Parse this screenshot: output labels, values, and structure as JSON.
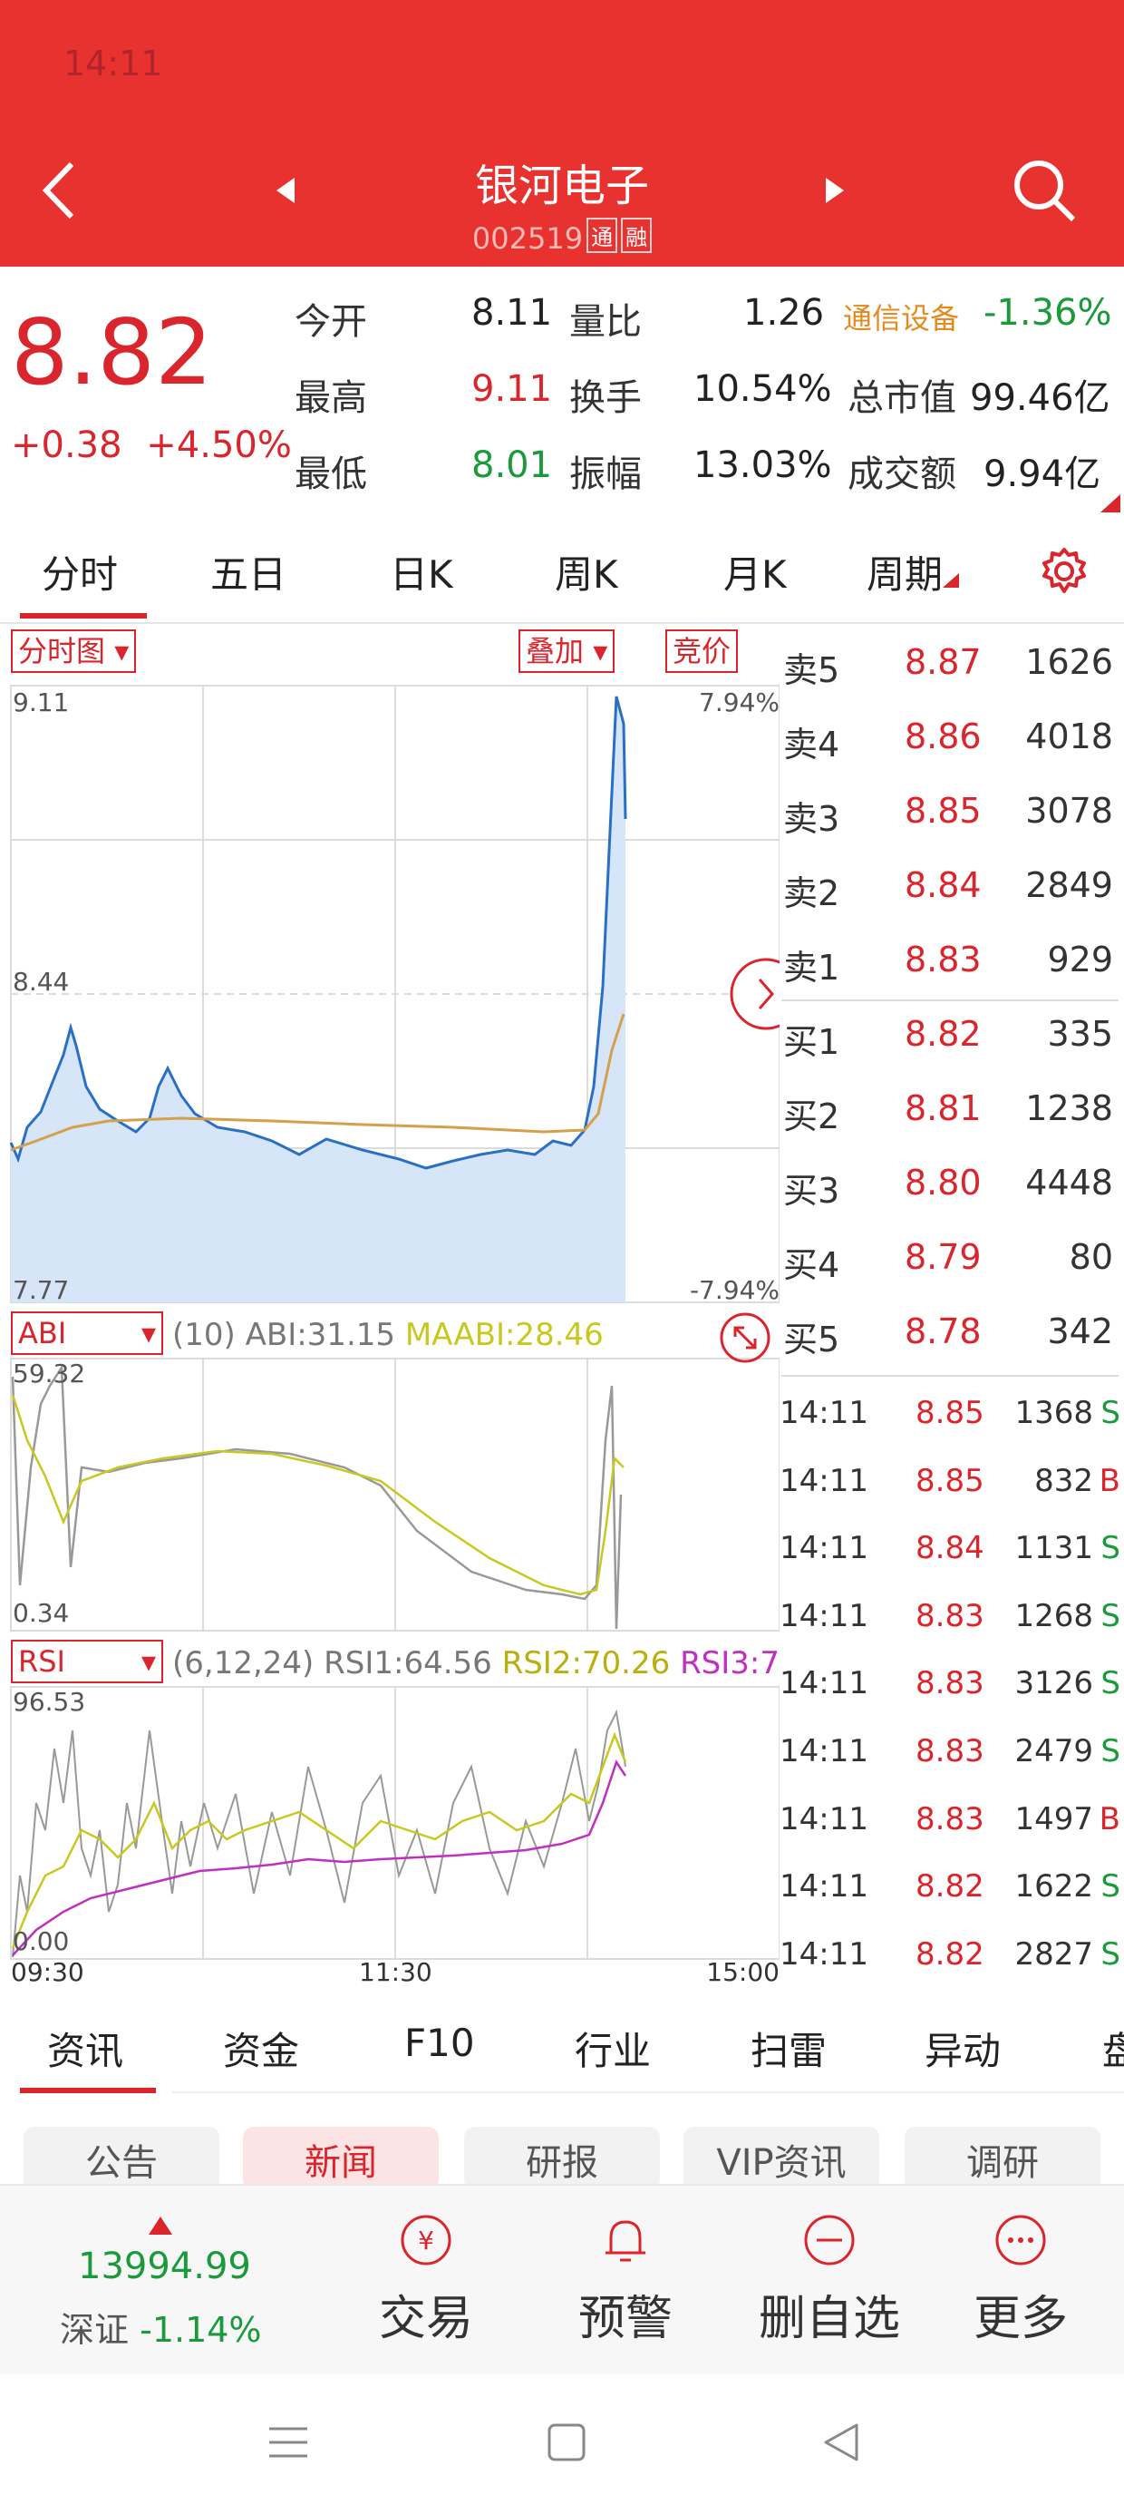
{
  "status_time": "14:11",
  "header": {
    "stock_name": "银河电子",
    "stock_code": "002519",
    "badge_tong": "通",
    "badge_rong": "融"
  },
  "quote": {
    "price": "8.82",
    "change": "+0.38",
    "change_pct": "+4.50%",
    "open_label": "今开",
    "open": "8.11",
    "high_label": "最高",
    "high": "9.11",
    "low_label": "最低",
    "low": "8.01",
    "vol_ratio_label": "量比",
    "vol_ratio": "1.26",
    "turnover_label": "换手",
    "turnover": "10.54%",
    "amplitude_label": "振幅",
    "amplitude": "13.03%",
    "sector": "通信设备",
    "sector_pct": "-1.36%",
    "mktcap_label": "总市值",
    "mktcap": "99.46亿",
    "amount_label": "成交额",
    "amount": "9.94亿"
  },
  "tabs": [
    "分时",
    "五日",
    "日K",
    "周K",
    "月K",
    "周期"
  ],
  "chart": {
    "mode_select": "分时图",
    "overlay_select": "叠加",
    "auction_button": "竞价",
    "price_max": "9.11",
    "price_mid": "8.44",
    "price_min": "7.77",
    "pct_max": "7.94%",
    "pct_min": "-7.94%",
    "abi_select": "ABI",
    "abi_params": "(10)",
    "abi_value": "ABI:31.15",
    "maabi_value": "MAABI:28.46",
    "abi_max": "59.32",
    "abi_min": "0.34",
    "rsi_select": "RSI",
    "rsi_params": "(6,12,24)",
    "rsi1": "RSI1:64.56",
    "rsi2": "RSI2:70.26",
    "rsi3": "RSI3:7",
    "rsi_max": "96.53",
    "rsi_min": "0.00",
    "time_start": "09:30",
    "time_mid": "11:30",
    "time_end": "15:00",
    "colors": {
      "price_line": "#2a6fc6",
      "avg_line": "#d4a14a",
      "fill": "#d6e6f8",
      "abi": "#c8c820",
      "rsi3": "#c030c0"
    }
  },
  "order_book": [
    {
      "label": "卖5",
      "price": "8.87",
      "vol": "1626"
    },
    {
      "label": "卖4",
      "price": "8.86",
      "vol": "4018"
    },
    {
      "label": "卖3",
      "price": "8.85",
      "vol": "3078"
    },
    {
      "label": "卖2",
      "price": "8.84",
      "vol": "2849"
    },
    {
      "label": "卖1",
      "price": "8.83",
      "vol": "929"
    },
    {
      "label": "买1",
      "price": "8.82",
      "vol": "335"
    },
    {
      "label": "买2",
      "price": "8.81",
      "vol": "1238"
    },
    {
      "label": "买3",
      "price": "8.80",
      "vol": "4448"
    },
    {
      "label": "买4",
      "price": "8.79",
      "vol": "80"
    },
    {
      "label": "买5",
      "price": "8.78",
      "vol": "342"
    }
  ],
  "trades": [
    {
      "time": "14:11",
      "price": "8.85",
      "vol": "1368",
      "side": "S"
    },
    {
      "time": "14:11",
      "price": "8.85",
      "vol": "832",
      "side": "B"
    },
    {
      "time": "14:11",
      "price": "8.84",
      "vol": "1131",
      "side": "S"
    },
    {
      "time": "14:11",
      "price": "8.83",
      "vol": "1268",
      "side": "S"
    },
    {
      "time": "14:11",
      "price": "8.83",
      "vol": "3126",
      "side": "S"
    },
    {
      "time": "14:11",
      "price": "8.83",
      "vol": "2479",
      "side": "S"
    },
    {
      "time": "14:11",
      "price": "8.83",
      "vol": "1497",
      "side": "B"
    },
    {
      "time": "14:11",
      "price": "8.82",
      "vol": "1622",
      "side": "S"
    },
    {
      "time": "14:11",
      "price": "8.82",
      "vol": "2827",
      "side": "S"
    }
  ],
  "news_tabs": [
    "资讯",
    "资金",
    "F10",
    "行业",
    "扫雷",
    "异动",
    "盘"
  ],
  "news_chips": [
    "公告",
    "新闻",
    "研报",
    "VIP资讯",
    "调研"
  ],
  "bottom": {
    "index_value": "13994.99",
    "index_name": "深证",
    "index_pct": "-1.14%",
    "trade": "交易",
    "alert": "预警",
    "remove": "删自选",
    "more": "更多"
  }
}
